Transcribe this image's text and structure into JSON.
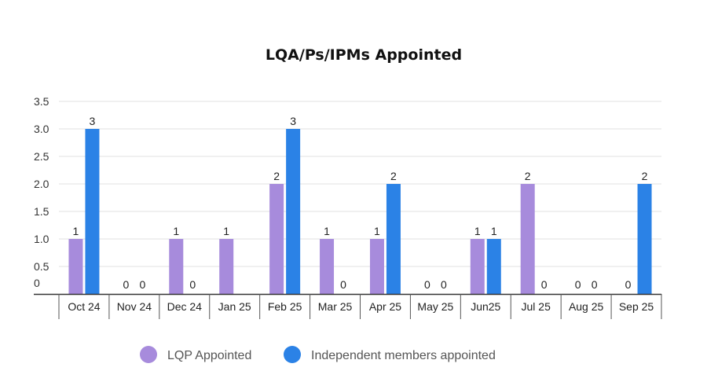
{
  "chart_data": {
    "type": "bar",
    "title": "LQA/Ps/IPMs Appointed",
    "categories": [
      "Oct 24",
      "Nov 24",
      "Dec 24",
      "Jan 25",
      "Feb 25",
      "Mar 25",
      "Apr 25",
      "May 25",
      "Jun25",
      "Jul 25",
      "Aug 25",
      "Sep 25"
    ],
    "series": [
      {
        "name": "LQP Appointed",
        "color": "#a78bdc",
        "values": [
          1,
          0,
          1,
          1,
          2,
          1,
          1,
          0,
          1,
          2,
          0,
          0
        ],
        "labels": [
          "1",
          "0",
          "1",
          "1",
          "2",
          "1",
          "1",
          "0",
          "1",
          "2",
          "0",
          "0"
        ]
      },
      {
        "name": "Independent members appointed",
        "color": "#2b82e6",
        "values": [
          3,
          0,
          0,
          null,
          3,
          0,
          2,
          0,
          1,
          0,
          0,
          2
        ],
        "labels": [
          "3",
          "0",
          "0",
          "",
          "3",
          "0",
          "2",
          "0",
          "1",
          "0",
          "0",
          "2"
        ]
      }
    ],
    "y_ticks": [
      "0",
      "0.5",
      "1.0",
      "1.5",
      "2.0",
      "2.5",
      "3.0",
      "3.5"
    ],
    "ylim": [
      0,
      3.5
    ],
    "grid": true,
    "legend_position": "bottom"
  }
}
